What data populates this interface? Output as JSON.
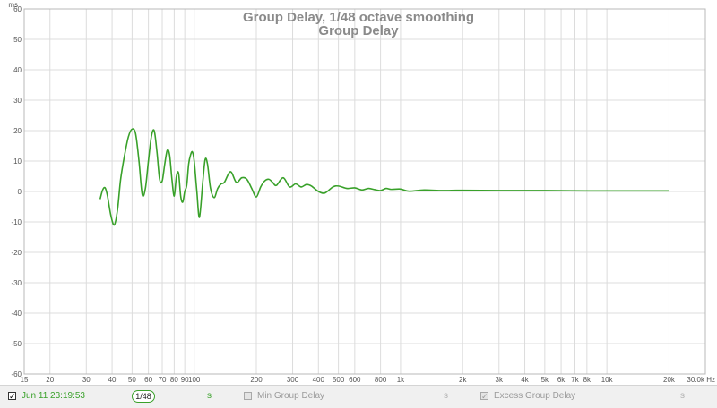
{
  "chart_data": {
    "type": "line",
    "title": "Group Delay, 1/48 octave smoothing",
    "subtitle": "Group Delay",
    "ylabel": "ms",
    "xscale": "log",
    "xlim": [
      15,
      30000
    ],
    "ylim": [
      -60,
      60
    ],
    "grid": true,
    "y_ticks": [
      60,
      50,
      40,
      30,
      20,
      10,
      0,
      -10,
      -20,
      -30,
      -40,
      -50,
      -60
    ],
    "x_ticks": [
      {
        "v": 15,
        "label": "15"
      },
      {
        "v": 20,
        "label": "20"
      },
      {
        "v": 30,
        "label": "30"
      },
      {
        "v": 40,
        "label": "40"
      },
      {
        "v": 50,
        "label": "50"
      },
      {
        "v": 60,
        "label": "60"
      },
      {
        "v": 70,
        "label": "70"
      },
      {
        "v": 80,
        "label": "80"
      },
      {
        "v": 90,
        "label": "90"
      },
      {
        "v": 100,
        "label": "100"
      },
      {
        "v": 200,
        "label": "200"
      },
      {
        "v": 300,
        "label": "300"
      },
      {
        "v": 400,
        "label": "400"
      },
      {
        "v": 500,
        "label": "500"
      },
      {
        "v": 600,
        "label": "600"
      },
      {
        "v": 800,
        "label": "800"
      },
      {
        "v": 1000,
        "label": "1k"
      },
      {
        "v": 2000,
        "label": "2k"
      },
      {
        "v": 3000,
        "label": "3k"
      },
      {
        "v": 4000,
        "label": "4k"
      },
      {
        "v": 5000,
        "label": "5k"
      },
      {
        "v": 6000,
        "label": "6k"
      },
      {
        "v": 7000,
        "label": "7k"
      },
      {
        "v": 8000,
        "label": "8k"
      },
      {
        "v": 10000,
        "label": "10k"
      },
      {
        "v": 20000,
        "label": "20k"
      },
      {
        "v": 30000,
        "label": "30.0k Hz"
      }
    ],
    "series": [
      {
        "color": "#39a12a",
        "x": [
          35,
          36,
          37,
          38,
          39.5,
          41,
          42.5,
          44,
          46,
          48,
          50,
          52,
          54,
          56,
          58,
          60,
          62,
          64,
          66,
          68,
          70,
          72,
          74,
          76,
          78,
          80,
          82,
          84,
          86,
          88,
          90,
          92,
          94,
          96,
          98,
          100,
          103,
          106,
          110,
          113,
          116,
          120,
          125,
          130,
          135,
          140,
          150,
          160,
          170,
          180,
          190,
          200,
          210,
          220,
          230,
          240,
          250,
          270,
          290,
          310,
          330,
          350,
          370,
          400,
          430,
          470,
          500,
          550,
          600,
          650,
          700,
          750,
          800,
          850,
          900,
          1000,
          1100,
          1300,
          1600,
          2000,
          3000,
          5000,
          8000,
          12000,
          20000
        ],
        "y": [
          -2.5,
          0.5,
          1.2,
          -1.5,
          -8,
          -11,
          -6,
          4,
          12,
          18,
          20.5,
          19,
          10,
          -1,
          1,
          10,
          18,
          20,
          13,
          4,
          3.5,
          9,
          13.5,
          12,
          4,
          -1.5,
          5,
          6,
          -1.5,
          -3.5,
          0,
          2,
          9,
          12,
          13,
          10,
          0,
          -8.5,
          3,
          10.5,
          9,
          1,
          -2,
          1,
          2.5,
          3,
          6.5,
          3,
          4.5,
          4,
          1,
          -1.8,
          1.5,
          3.5,
          4,
          3,
          2,
          4.5,
          1.5,
          2.5,
          1.5,
          2.3,
          1.8,
          0,
          -0.5,
          1.5,
          1.8,
          1,
          1.2,
          0.5,
          1,
          0.6,
          0.3,
          1,
          0.7,
          0.8,
          0.1,
          0.5,
          0.3,
          0.4,
          0.3,
          0.3,
          0.2,
          0.2,
          0.2
        ]
      }
    ]
  },
  "legend": {
    "entries": [
      {
        "label": "Jun 11 23:19:53",
        "checked": true,
        "enabled": true,
        "color": "#39a12a",
        "smoothing_num": "1",
        "smoothing_den": "48",
        "unit": "s"
      },
      {
        "label": "Min Group Delay",
        "checked": false,
        "enabled": false,
        "unit": "s"
      },
      {
        "label": "Excess Group Delay",
        "checked": true,
        "enabled": false,
        "unit": "s"
      }
    ]
  }
}
